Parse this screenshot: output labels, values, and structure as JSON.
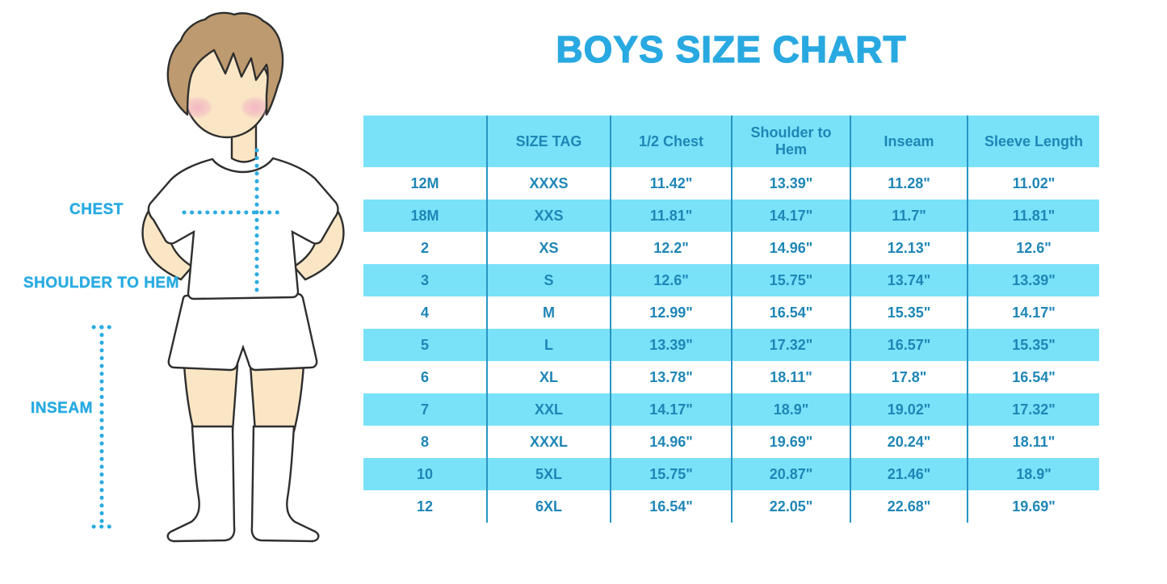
{
  "title": "BOYS SIZE CHART",
  "figure": {
    "labels": {
      "chest": "CHEST",
      "shoulder_to_hem": "SHOULDER TO HEM",
      "inseam": "INSEAM"
    }
  },
  "table": {
    "headers": [
      "",
      "SIZE TAG",
      "1/2 Chest",
      "Shoulder to Hem",
      "Inseam",
      "Sleeve Length"
    ],
    "rows": [
      [
        "12M",
        "XXXS",
        "11.42\"",
        "13.39\"",
        "11.28\"",
        "11.02\""
      ],
      [
        "18M",
        "XXS",
        "11.81\"",
        "14.17\"",
        "11.7\"",
        "11.81\""
      ],
      [
        "2",
        "XS",
        "12.2\"",
        "14.96\"",
        "12.13\"",
        "12.6\""
      ],
      [
        "3",
        "S",
        "12.6\"",
        "15.75\"",
        "13.74\"",
        "13.39\""
      ],
      [
        "4",
        "M",
        "12.99\"",
        "16.54\"",
        "15.35\"",
        "14.17\""
      ],
      [
        "5",
        "L",
        "13.39\"",
        "17.32\"",
        "16.57\"",
        "15.35\""
      ],
      [
        "6",
        "XL",
        "13.78\"",
        "18.11\"",
        "17.8\"",
        "16.54\""
      ],
      [
        "7",
        "XXL",
        "14.17\"",
        "18.9\"",
        "19.02\"",
        "17.32\""
      ],
      [
        "8",
        "XXXL",
        "14.96\"",
        "19.69\"",
        "20.24\"",
        "18.11\""
      ],
      [
        "10",
        "5XL",
        "15.75\"",
        "20.87\"",
        "21.46\"",
        "18.9\""
      ],
      [
        "12",
        "6XL",
        "16.54\"",
        "22.05\"",
        "22.68\"",
        "19.69\""
      ]
    ]
  },
  "chart_data": {
    "type": "table",
    "title": "BOYS SIZE CHART",
    "columns": [
      "",
      "SIZE TAG",
      "1/2 Chest",
      "Shoulder to Hem",
      "Inseam",
      "Sleeve Length"
    ],
    "rows": [
      [
        "12M",
        "XXXS",
        "11.42\"",
        "13.39\"",
        "11.28\"",
        "11.02\""
      ],
      [
        "18M",
        "XXS",
        "11.81\"",
        "14.17\"",
        "11.7\"",
        "11.81\""
      ],
      [
        "2",
        "XS",
        "12.2\"",
        "14.96\"",
        "12.13\"",
        "12.6\""
      ],
      [
        "3",
        "S",
        "12.6\"",
        "15.75\"",
        "13.74\"",
        "13.39\""
      ],
      [
        "4",
        "M",
        "12.99\"",
        "16.54\"",
        "15.35\"",
        "14.17\""
      ],
      [
        "5",
        "L",
        "13.39\"",
        "17.32\"",
        "16.57\"",
        "15.35\""
      ],
      [
        "6",
        "XL",
        "13.78\"",
        "18.11\"",
        "17.8\"",
        "16.54\""
      ],
      [
        "7",
        "XXL",
        "14.17\"",
        "18.9\"",
        "19.02\"",
        "17.32\""
      ],
      [
        "8",
        "XXXL",
        "14.96\"",
        "19.69\"",
        "20.24\"",
        "18.11\""
      ],
      [
        "10",
        "5XL",
        "15.75\"",
        "20.87\"",
        "21.46\"",
        "18.9\""
      ],
      [
        "12",
        "6XL",
        "16.54\"",
        "22.05\"",
        "22.68\"",
        "19.69\""
      ]
    ],
    "units": "inches",
    "row_stripe_colors": [
      "#FFFFFF",
      "#79E2F9"
    ]
  },
  "colors": {
    "title_blue": "#29A9E1",
    "label_blue": "#29ABE2",
    "table_row_blue": "#79E2F9",
    "table_text_blue": "#1E86B6",
    "table_divider_blue": "#2895C5",
    "skin": "#FAE6C5",
    "hair": "#BD9A6F",
    "blush": "#F2AFC3",
    "outline": "#2E2E2E"
  }
}
